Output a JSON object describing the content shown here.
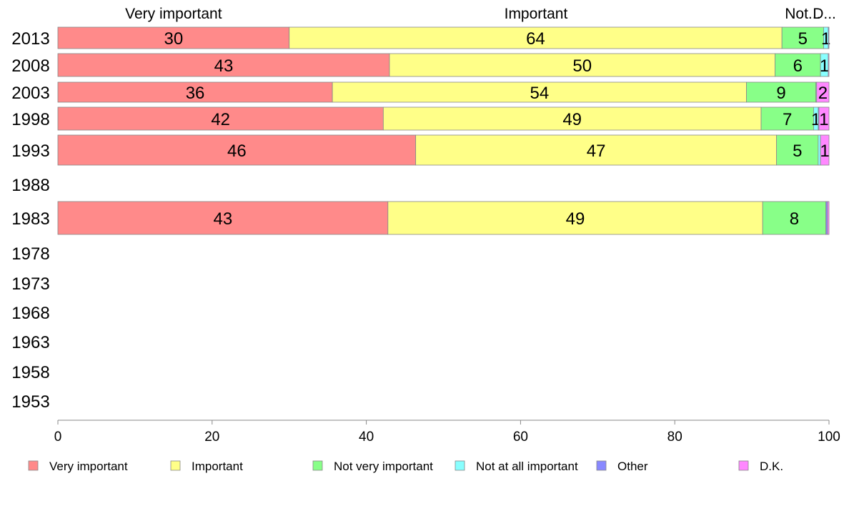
{
  "chart_data": {
    "type": "bar",
    "orientation": "horizontal",
    "stacked": true,
    "categories": [
      "2013",
      "2008",
      "2003",
      "1998",
      "1993",
      "1988",
      "1983",
      "1978",
      "1973",
      "1968",
      "1963",
      "1958",
      "1953"
    ],
    "series": [
      {
        "name": "Very important",
        "color": "#ff8a8a",
        "values": [
          30,
          43,
          35.6,
          42.2,
          46.4,
          null,
          42.8,
          null,
          null,
          null,
          null,
          null,
          null
        ],
        "labels": [
          "30",
          "43",
          "36",
          "42",
          "46",
          "",
          "43",
          "",
          "",
          "",
          "",
          "",
          ""
        ]
      },
      {
        "name": "Important",
        "color": "#ffff88",
        "values": [
          63.9,
          50,
          53.7,
          49,
          46.8,
          null,
          48.6,
          null,
          null,
          null,
          null,
          null,
          null
        ],
        "labels": [
          "64",
          "50",
          "54",
          "49",
          "47",
          "",
          "49",
          "",
          "",
          "",
          "",
          "",
          ""
        ]
      },
      {
        "name": "Not very important",
        "color": "#88ff88",
        "values": [
          5.4,
          5.9,
          9,
          6.8,
          5.4,
          null,
          8.2,
          null,
          null,
          null,
          null,
          null,
          null
        ],
        "labels": [
          "5",
          "6",
          "9",
          "7",
          "5",
          "",
          "8",
          "",
          "",
          "",
          "",
          "",
          ""
        ]
      },
      {
        "name": "Not at all important",
        "color": "#88ffff",
        "values": [
          0.6,
          1,
          0.1,
          0.6,
          0.3,
          null,
          0,
          null,
          null,
          null,
          null,
          null,
          null
        ],
        "labels": [
          "1",
          "1",
          "",
          "1",
          "",
          "",
          "",
          "",
          "",
          "",
          "",
          "",
          ""
        ]
      },
      {
        "name": "Other",
        "color": "#8888ff",
        "values": [
          0.1,
          0,
          0,
          0.1,
          0,
          null,
          0.2,
          null,
          null,
          null,
          null,
          null,
          null
        ],
        "labels": [
          "",
          "",
          "",
          "",
          "",
          "",
          "",
          "",
          "",
          "",
          "",
          "",
          ""
        ]
      },
      {
        "name": "D.K.",
        "color": "#ff88ff",
        "values": [
          0,
          0.1,
          1.6,
          1.3,
          1.1,
          null,
          0.2,
          null,
          null,
          null,
          null,
          null,
          null
        ],
        "labels": [
          "",
          "",
          "2",
          "1",
          "1",
          "",
          "",
          "",
          "",
          "",
          "",
          "",
          ""
        ]
      }
    ],
    "column_headers": [
      {
        "text": "Very important",
        "at": 15
      },
      {
        "text": "Important",
        "at": 62
      },
      {
        "text": "Not...",
        "at": 96.6
      },
      {
        "text": "D...",
        "at": 99.4
      }
    ],
    "xlim": [
      0,
      100
    ],
    "xticks": [
      "0",
      "20",
      "40",
      "60",
      "80",
      "100"
    ],
    "grid": false,
    "legend_position": "bottom"
  }
}
